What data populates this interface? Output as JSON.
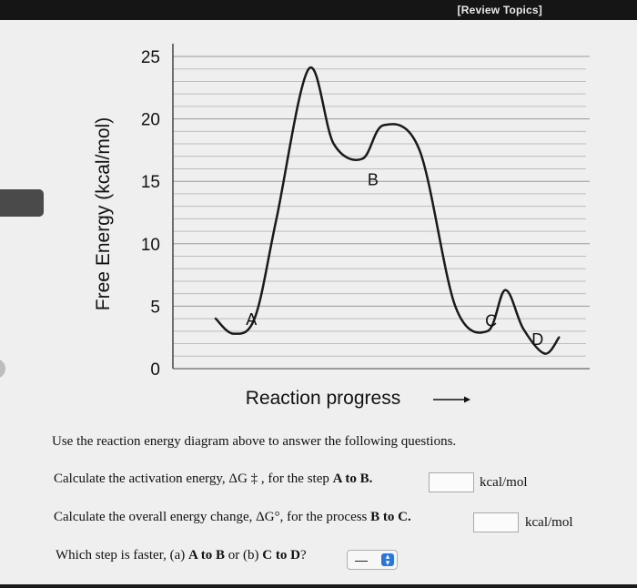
{
  "header": {
    "review_topics": "[Review Topics]"
  },
  "chart_data": {
    "type": "line",
    "title": "",
    "ylabel": "Free Energy (kcal/mol)",
    "xlabel": "Reaction progress",
    "xlabel_arrow": "⟶",
    "ylim": [
      0,
      25
    ],
    "y_ticks": [
      0,
      5,
      10,
      15,
      20,
      25
    ],
    "grid": true,
    "x": [
      0.0,
      0.05,
      0.11,
      0.17,
      0.26,
      0.33,
      0.41,
      0.47,
      0.57,
      0.67,
      0.76,
      0.81,
      0.86,
      0.92,
      0.96
    ],
    "y": [
      4.0,
      2.8,
      4.1,
      12.0,
      24.0,
      18.0,
      16.8,
      19.5,
      17.5,
      5.0,
      3.0,
      6.3,
      3.2,
      1.2,
      2.5
    ],
    "point_labels": [
      {
        "label": "A",
        "x": 0.1,
        "y": 3.5
      },
      {
        "label": "B",
        "x": 0.44,
        "y": 14.7
      },
      {
        "label": "C",
        "x": 0.77,
        "y": 3.4
      },
      {
        "label": "D",
        "x": 0.9,
        "y": 1.9
      }
    ],
    "line_color": "#1a1a1a",
    "grid_color": "#bdbdbd"
  },
  "questions": {
    "intro": "Use the reaction energy diagram above to answer the following questions.",
    "q1_text": "Calculate the activation energy, ΔG ‡ , for the step ",
    "q1_bold": "A to B.",
    "q1_unit": "kcal/mol",
    "q2_text": "Calculate the overall energy change, ΔG°, for the process ",
    "q2_bold": "B to C.",
    "q2_unit": "kcal/mol",
    "q3_text1": "Which step is faster, (a) ",
    "q3_bold1": "A to B",
    "q3_text2": " or (b) ",
    "q3_bold2": "C to D",
    "q3_text3": "?",
    "q3_select_value": "—"
  }
}
